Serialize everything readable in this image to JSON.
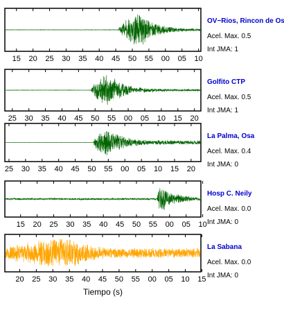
{
  "chart_data": [
    {
      "type": "line",
      "station": "OV−Rios, Rincon de Os",
      "accel_label": "Acel. Max. 0.5",
      "intensity_label": "Int JMA: 1",
      "trace_color": "#006400",
      "name_color": "#0000cc",
      "x_tick_labels": [
        "15",
        "20",
        "25",
        "30",
        "35",
        "40",
        "45",
        "50",
        "55",
        "00",
        "05",
        "10"
      ],
      "signal": {
        "onset": 0.58,
        "peak": 0.69,
        "amplitude": 0.95,
        "pre_noise": 0.01,
        "post_noise": 0.05,
        "seed": 11
      }
    },
    {
      "type": "line",
      "station": "Golfito CTP",
      "accel_label": "Acel. Max. 0.5",
      "intensity_label": "Int JMA: 1",
      "trace_color": "#006400",
      "name_color": "#0000cc",
      "x_tick_labels": [
        "25",
        "30",
        "35",
        "40",
        "45",
        "50",
        "55",
        "00",
        "05",
        "10",
        "15",
        "20"
      ],
      "signal": {
        "onset": 0.44,
        "peak": 0.53,
        "amplitude": 0.95,
        "pre_noise": 0.01,
        "post_noise": 0.06,
        "seed": 23
      }
    },
    {
      "type": "line",
      "station": "La Palma, Osa",
      "accel_label": "Acel. Max. 0.4",
      "intensity_label": "Int JMA: 0",
      "trace_color": "#006400",
      "name_color": "#0000cc",
      "x_tick_labels": [
        "25",
        "30",
        "35",
        "40",
        "45",
        "50",
        "55",
        "00",
        "05",
        "10",
        "15",
        "20"
      ],
      "signal": {
        "onset": 0.45,
        "peak": 0.52,
        "amplitude": 0.95,
        "pre_noise": 0.005,
        "post_noise": 0.12,
        "seed": 37
      }
    },
    {
      "type": "line",
      "station": "Hosp C. Neily",
      "accel_label": "Acel. Max. 0.0",
      "intensity_label": "Int JMA: 0",
      "trace_color": "#006400",
      "name_color": "#0000cc",
      "x_tick_labels": [
        "15",
        "20",
        "25",
        "30",
        "35",
        "40",
        "45",
        "50",
        "55",
        "00",
        "05",
        "10"
      ],
      "signal": {
        "onset": 0.78,
        "peak": 0.795,
        "amplitude": 0.95,
        "pre_noise": 0.06,
        "post_noise": 0.05,
        "seed": 51
      }
    },
    {
      "type": "line",
      "station": "La Sabana",
      "accel_label": "Acel. Max. 0.0",
      "intensity_label": "Int JMA: 0",
      "trace_color": "#ffa500",
      "name_color": "#0000cc",
      "x_tick_labels": [
        "20",
        "25",
        "30",
        "35",
        "40",
        "45",
        "50",
        "55",
        "00",
        "05",
        "10",
        "15"
      ],
      "xlabel": "Tiempo (s)",
      "signal": {
        "onset": 0.0,
        "peak": 0.34,
        "amplitude": 0.95,
        "pre_noise": 0.3,
        "post_noise": 0.3,
        "seed": 67
      }
    }
  ]
}
